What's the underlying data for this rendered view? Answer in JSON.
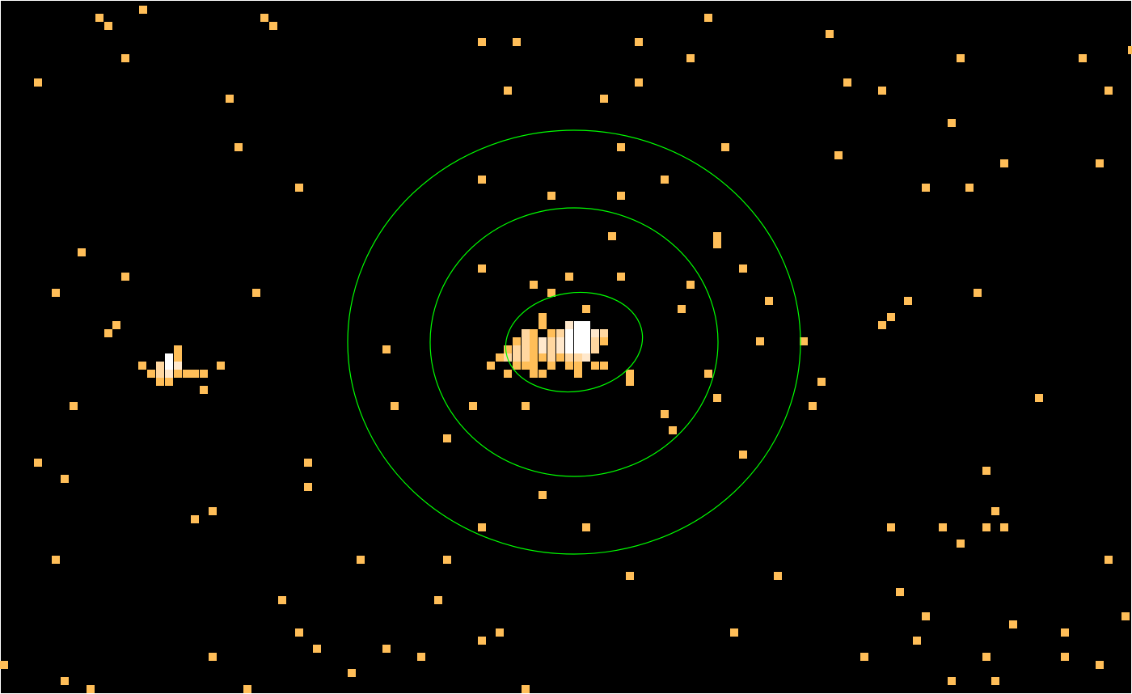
{
  "image": {
    "background_color": "#000000",
    "frame_color": "#ffffff",
    "count_colors": {
      "low": "#ffbe58",
      "mid": "#ffd7a0",
      "high": "#ffe8cc",
      "peak": "#ffffff"
    },
    "region_color": "#00ff00"
  },
  "regions": [
    {
      "type": "ellipse",
      "role": "source-aperture"
    },
    {
      "type": "circle",
      "role": "background-annulus-inner"
    },
    {
      "type": "circle",
      "role": "background-annulus-outer"
    }
  ]
}
